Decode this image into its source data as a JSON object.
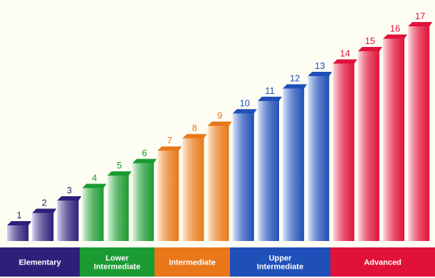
{
  "chart_data": {
    "type": "bar",
    "title": "",
    "xlabel": "",
    "ylabel": "",
    "categories": [
      "1",
      "2",
      "3",
      "4",
      "5",
      "6",
      "7",
      "8",
      "9",
      "10",
      "11",
      "12",
      "13",
      "14",
      "15",
      "16",
      "17"
    ],
    "values": [
      1,
      2,
      3,
      4,
      5,
      6,
      7,
      8,
      9,
      10,
      11,
      12,
      13,
      14,
      15,
      16,
      17
    ],
    "ylim": [
      0,
      17
    ],
    "grid": false,
    "groups": [
      {
        "name": "Elementary",
        "lines": [
          "Elementary"
        ],
        "levels": [
          1,
          3
        ],
        "color": "#2e1f7a",
        "light": "#d6d2f0"
      },
      {
        "name": "Lower Intermediate",
        "lines": [
          "Lower",
          "Intermediate"
        ],
        "levels": [
          4,
          6
        ],
        "color": "#1a9b32",
        "light": "#e2f6e2"
      },
      {
        "name": "Intermediate",
        "lines": [
          "Intermediate"
        ],
        "levels": [
          7,
          9
        ],
        "color": "#e8781a",
        "light": "#fde9d4"
      },
      {
        "name": "Upper Intermediate",
        "lines": [
          "Upper",
          "Intermediate"
        ],
        "levels": [
          10,
          13
        ],
        "color": "#1f4fb8",
        "light": "#dde6fb"
      },
      {
        "name": "Advanced",
        "lines": [
          "Advanced"
        ],
        "levels": [
          14,
          17
        ],
        "color": "#e0123a",
        "light": "#fcdde3"
      }
    ]
  }
}
